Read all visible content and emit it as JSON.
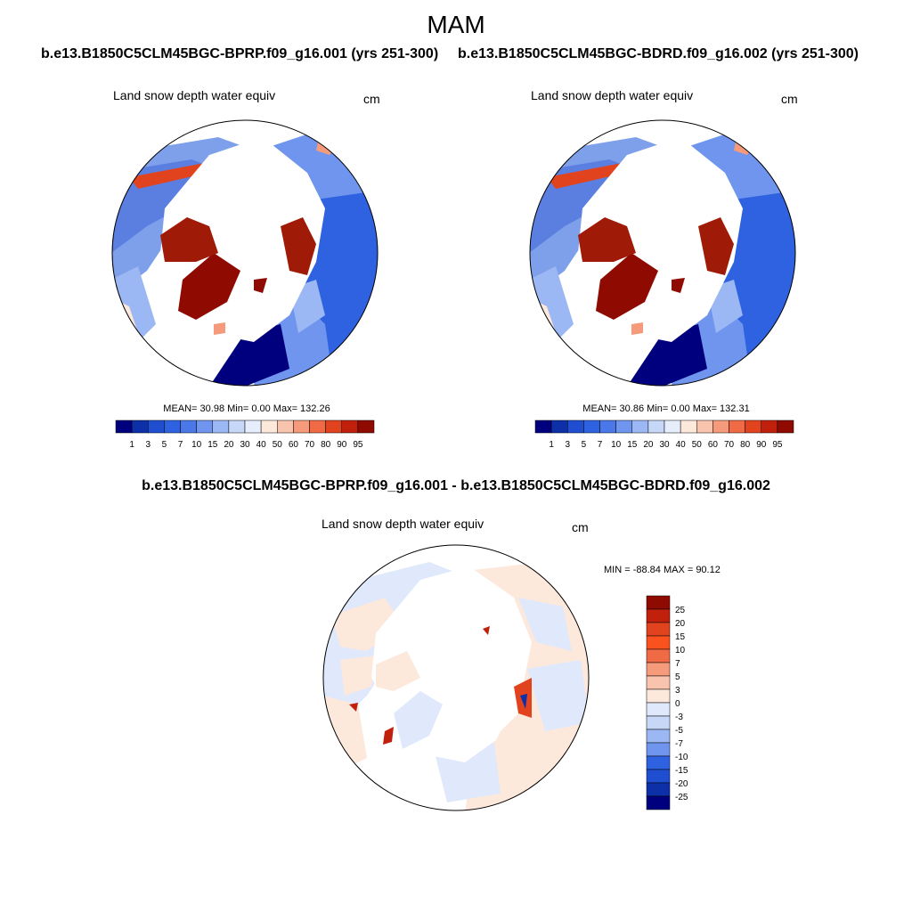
{
  "main_title": "MAM",
  "panels": [
    {
      "case_title": "b.e13.B1850C5CLM45BGC-BPRP.f09_g16.001 (yrs 251-300)",
      "label": "Land snow depth water equiv",
      "units": "cm",
      "stats": "MEAN=  30.98  Min=   0.00  Max= 132.26"
    },
    {
      "case_title": "b.e13.B1850C5CLM45BGC-BDRD.f09_g16.002 (yrs 251-300)",
      "label": "Land snow depth water equiv",
      "units": "cm",
      "stats": "MEAN=  30.86  Min=   0.00  Max= 132.31"
    }
  ],
  "colorbar": {
    "labels": [
      "1",
      "3",
      "5",
      "7",
      "10",
      "15",
      "20",
      "30",
      "40",
      "50",
      "60",
      "70",
      "80",
      "90",
      "95"
    ],
    "colors": [
      "#00007f",
      "#0d2fa8",
      "#1f4fd0",
      "#2f62e0",
      "#4a78e8",
      "#6f95ee",
      "#9cb8f4",
      "#c6d7f7",
      "#e6eefb",
      "#fde8dc",
      "#f9c4ad",
      "#f59a7a",
      "#ef6a45",
      "#e2431f",
      "#c0200c",
      "#8f0a00"
    ]
  },
  "diff": {
    "title": "b.e13.B1850C5CLM45BGC-BPRP.f09_g16.001 - b.e13.B1850C5CLM45BGC-BDRD.f09_g16.002",
    "label": "Land snow depth water equiv",
    "units": "cm",
    "stats": "MIN = -88.84 MAX =  90.12",
    "colorbar": {
      "labels": [
        "25",
        "20",
        "15",
        "10",
        "7",
        "5",
        "3",
        "0",
        "-3",
        "-5",
        "-7",
        "-10",
        "-15",
        "-20",
        "-25"
      ],
      "colors": [
        "#8f0a00",
        "#c0200c",
        "#e2431f",
        "#f9521e",
        "#ef6a45",
        "#f59a7a",
        "#f9c4ad",
        "#fde8dc",
        "#dfe9fb",
        "#c6d7f7",
        "#9cb8f4",
        "#6f95ee",
        "#2f62e0",
        "#1f4fd0",
        "#0d2fa8",
        "#00007f"
      ]
    }
  }
}
